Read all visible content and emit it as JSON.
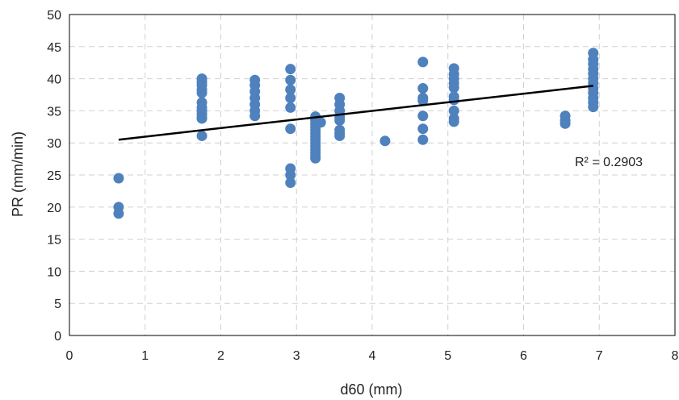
{
  "chart_data": {
    "type": "scatter",
    "xlabel": "d60 (mm)",
    "ylabel": "PR (mm/min)",
    "xlim": [
      0,
      8
    ],
    "ylim": [
      0,
      50
    ],
    "xticks": [
      "0",
      "1",
      "2",
      "3",
      "4",
      "5",
      "6",
      "7",
      "8"
    ],
    "yticks": [
      "0",
      "5",
      "10",
      "15",
      "20",
      "25",
      "30",
      "35",
      "40",
      "45",
      "50"
    ],
    "grid": true,
    "grid_style": "dashed",
    "legend": "none",
    "marker_color": "#4f81bd",
    "trendline_color": "#000000",
    "annotation": "R² = 0.2903",
    "trendline": {
      "type": "linear",
      "x": [
        0.65,
        6.92
      ],
      "y": [
        30.5,
        38.9
      ]
    },
    "points": [
      [
        0.65,
        24.5
      ],
      [
        0.65,
        20.0
      ],
      [
        0.65,
        19.0
      ],
      [
        1.75,
        40.0
      ],
      [
        1.75,
        39.5
      ],
      [
        1.75,
        39.0
      ],
      [
        1.75,
        38.3
      ],
      [
        1.75,
        37.8
      ],
      [
        1.75,
        36.3
      ],
      [
        1.75,
        35.5
      ],
      [
        1.75,
        35.0
      ],
      [
        1.75,
        34.5
      ],
      [
        1.75,
        34.0
      ],
      [
        1.75,
        33.8
      ],
      [
        1.75,
        31.1
      ],
      [
        2.45,
        39.8
      ],
      [
        2.45,
        39.0
      ],
      [
        2.45,
        38.0
      ],
      [
        2.45,
        37.0
      ],
      [
        2.45,
        36.0
      ],
      [
        2.45,
        35.0
      ],
      [
        2.45,
        34.2
      ],
      [
        2.92,
        41.5
      ],
      [
        2.92,
        39.8
      ],
      [
        2.92,
        38.3
      ],
      [
        2.92,
        37.0
      ],
      [
        2.92,
        35.5
      ],
      [
        2.92,
        32.2
      ],
      [
        2.92,
        26.0
      ],
      [
        2.92,
        25.0
      ],
      [
        2.92,
        23.8
      ],
      [
        3.25,
        34.1
      ],
      [
        3.25,
        33.5
      ],
      [
        3.25,
        33.0
      ],
      [
        3.25,
        32.5
      ],
      [
        3.25,
        32.0
      ],
      [
        3.25,
        31.5
      ],
      [
        3.25,
        31.0
      ],
      [
        3.25,
        30.5
      ],
      [
        3.25,
        30.0
      ],
      [
        3.25,
        29.5
      ],
      [
        3.25,
        29.0
      ],
      [
        3.25,
        28.5
      ],
      [
        3.25,
        28.0
      ],
      [
        3.25,
        27.6
      ],
      [
        3.32,
        33.2
      ],
      [
        3.57,
        37.0
      ],
      [
        3.57,
        36.0
      ],
      [
        3.57,
        35.0
      ],
      [
        3.57,
        34.0
      ],
      [
        3.57,
        33.5
      ],
      [
        3.57,
        32.0
      ],
      [
        3.57,
        31.5
      ],
      [
        3.57,
        31.1
      ],
      [
        4.17,
        30.3
      ],
      [
        4.67,
        42.6
      ],
      [
        4.67,
        38.5
      ],
      [
        4.67,
        37.0
      ],
      [
        4.67,
        36.6
      ],
      [
        4.67,
        34.2
      ],
      [
        4.67,
        32.2
      ],
      [
        4.67,
        30.5
      ],
      [
        5.08,
        41.6
      ],
      [
        5.08,
        40.7
      ],
      [
        5.08,
        40.0
      ],
      [
        5.08,
        39.3
      ],
      [
        5.08,
        38.6
      ],
      [
        5.08,
        37.2
      ],
      [
        5.08,
        36.7
      ],
      [
        5.08,
        35.0
      ],
      [
        5.08,
        33.8
      ],
      [
        5.08,
        33.3
      ],
      [
        6.55,
        34.2
      ],
      [
        6.55,
        33.5
      ],
      [
        6.55,
        33.0
      ],
      [
        6.92,
        44.0
      ],
      [
        6.92,
        43.0
      ],
      [
        6.92,
        42.3
      ],
      [
        6.92,
        41.5
      ],
      [
        6.92,
        40.8
      ],
      [
        6.92,
        40.0
      ],
      [
        6.92,
        39.3
      ],
      [
        6.92,
        38.5
      ],
      [
        6.92,
        37.8
      ],
      [
        6.92,
        37.0
      ],
      [
        6.92,
        36.3
      ],
      [
        6.92,
        35.6
      ]
    ]
  }
}
